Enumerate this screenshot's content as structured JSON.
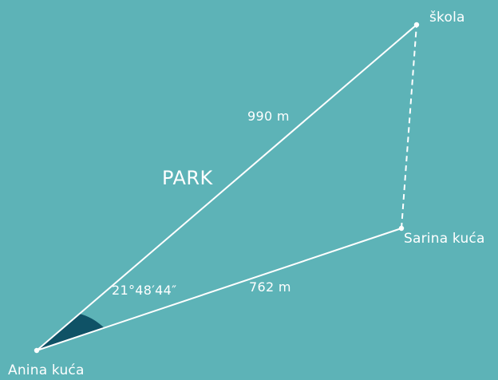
{
  "diagram": {
    "points": {
      "anina": "Anina kuća",
      "skola": "škola",
      "sarina": "Sarina kuća"
    },
    "distances": {
      "anina_skola": "990 m",
      "anina_sarina": "762 m"
    },
    "angle": "21°48′44″",
    "area_label": "PARK",
    "colors": {
      "background": "#5db3b7",
      "lines": "#ffffff",
      "angle_fill": "#0f5266"
    }
  }
}
